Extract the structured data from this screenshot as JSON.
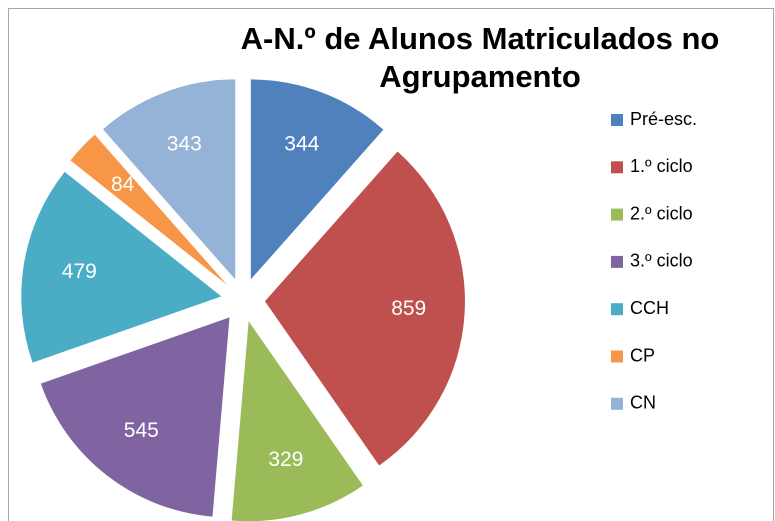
{
  "chart_data": {
    "type": "pie",
    "title": "A-N.º de Alunos Matriculados no Agrupamento",
    "categories": [
      "Pré-esc.",
      "1.º ciclo",
      "2.º ciclo",
      "3.º ciclo",
      "CCH",
      "CP",
      "CN"
    ],
    "values": [
      344,
      859,
      329,
      545,
      479,
      84,
      343
    ],
    "colors": [
      "#4f81bd",
      "#c0504d",
      "#9bbb59",
      "#8064a2",
      "#4bacc6",
      "#f79646",
      "#95b3d7"
    ],
    "legend": "right"
  }
}
